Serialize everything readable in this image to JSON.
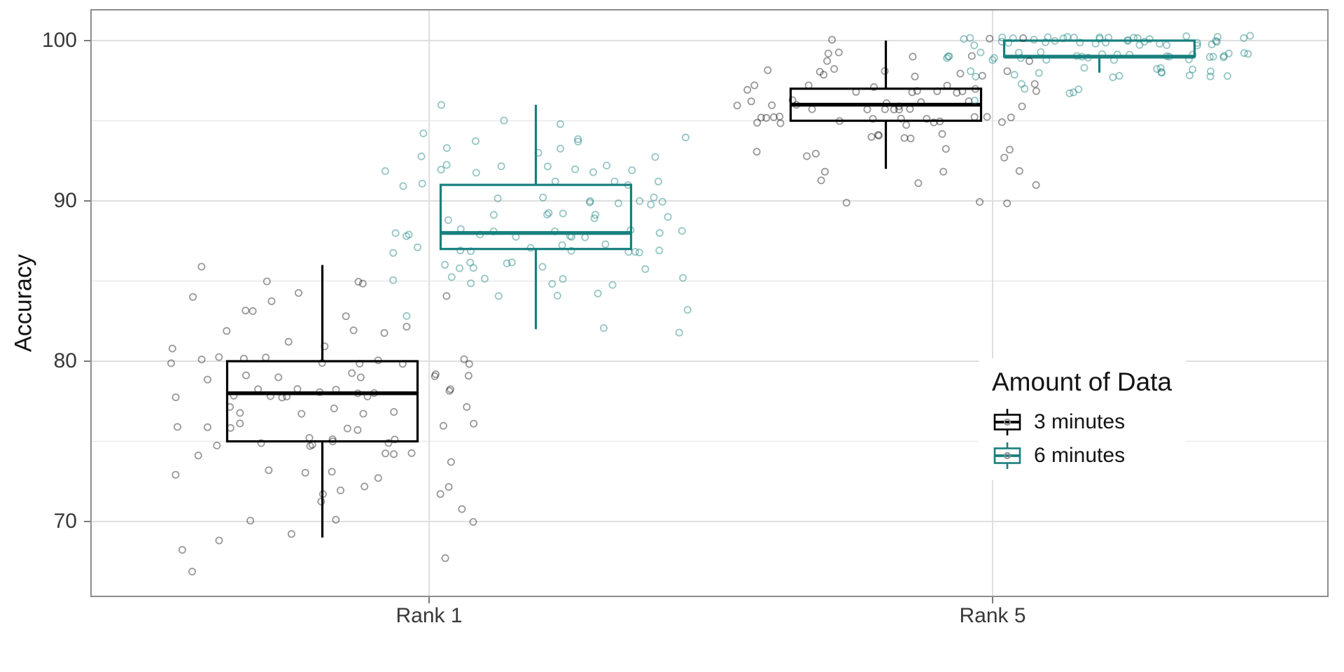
{
  "chart_data": {
    "type": "boxplot",
    "title": "",
    "xlabel": "",
    "ylabel": "Accuracy",
    "ylim": [
      65.2,
      101.9
    ],
    "y_ticks": [
      100,
      90,
      80,
      70
    ],
    "y_tick_labels": [
      "100",
      "90",
      "80",
      "70"
    ],
    "y_minor_ticks": [
      95,
      85,
      75
    ],
    "categories": [
      "Rank 1",
      "Rank 5"
    ],
    "grid": true,
    "legend": {
      "title": "Amount of Data",
      "position": "inside-right"
    },
    "series": [
      {
        "name": "3 minutes",
        "color": "#000000"
      },
      {
        "name": "6 minutes",
        "color": "#17807E"
      }
    ],
    "groups": [
      {
        "category": "Rank 1",
        "series": "3 minutes",
        "box": {
          "whisker_low": 69,
          "q1": 75,
          "median": 78,
          "q3": 80,
          "whisker_high": 86
        },
        "points": [
          [
            67,
            1
          ],
          [
            68,
            2
          ],
          [
            69,
            2
          ],
          [
            70,
            3
          ],
          [
            71,
            2
          ],
          [
            72,
            5
          ],
          [
            73,
            5
          ],
          [
            74,
            5
          ],
          [
            75,
            9
          ],
          [
            76,
            8
          ],
          [
            77,
            7
          ],
          [
            78,
            14
          ],
          [
            79,
            8
          ],
          [
            80,
            11
          ],
          [
            81,
            3
          ],
          [
            82,
            4
          ],
          [
            83,
            3
          ],
          [
            84,
            4
          ],
          [
            85,
            3
          ],
          [
            86,
            1
          ]
        ]
      },
      {
        "category": "Rank 1",
        "series": "6 minutes",
        "box": {
          "whisker_low": 82,
          "q1": 87,
          "median": 88,
          "q3": 91,
          "whisker_high": 96
        },
        "points": [
          [
            82,
            2
          ],
          [
            83,
            2
          ],
          [
            84,
            3
          ],
          [
            85,
            8
          ],
          [
            86,
            8
          ],
          [
            87,
            12
          ],
          [
            88,
            14
          ],
          [
            89,
            8
          ],
          [
            90,
            9
          ],
          [
            91,
            6
          ],
          [
            92,
            10
          ],
          [
            93,
            5
          ],
          [
            94,
            5
          ],
          [
            95,
            2
          ],
          [
            96,
            1
          ]
        ]
      },
      {
        "category": "Rank 5",
        "series": "3 minutes",
        "box": {
          "whisker_low": 92,
          "q1": 95,
          "median": 96,
          "q3": 97,
          "whisker_high": 100
        },
        "points": [
          [
            90,
            3
          ],
          [
            91,
            3
          ],
          [
            92,
            3
          ],
          [
            93,
            6
          ],
          [
            94,
            6
          ],
          [
            95,
            17
          ],
          [
            96,
            16
          ],
          [
            97,
            14
          ],
          [
            98,
            9
          ],
          [
            99,
            6
          ],
          [
            100,
            3
          ]
        ]
      },
      {
        "category": "Rank 5",
        "series": "6 minutes",
        "box": {
          "whisker_low": 98,
          "q1": 99,
          "median": 99,
          "q3": 100,
          "whisker_high": 100
        },
        "points": [
          [
            96,
            1
          ],
          [
            97,
            5
          ],
          [
            98,
            16
          ],
          [
            99,
            28
          ],
          [
            100,
            38
          ]
        ]
      }
    ],
    "style": {
      "panel_border_color": "#8D8D8D",
      "grid_major_color": "#DFDFDF",
      "grid_minor_color": "#E9E9E9",
      "tick_color": "#7A7A7A",
      "axis_text_color": "#383838"
    }
  }
}
